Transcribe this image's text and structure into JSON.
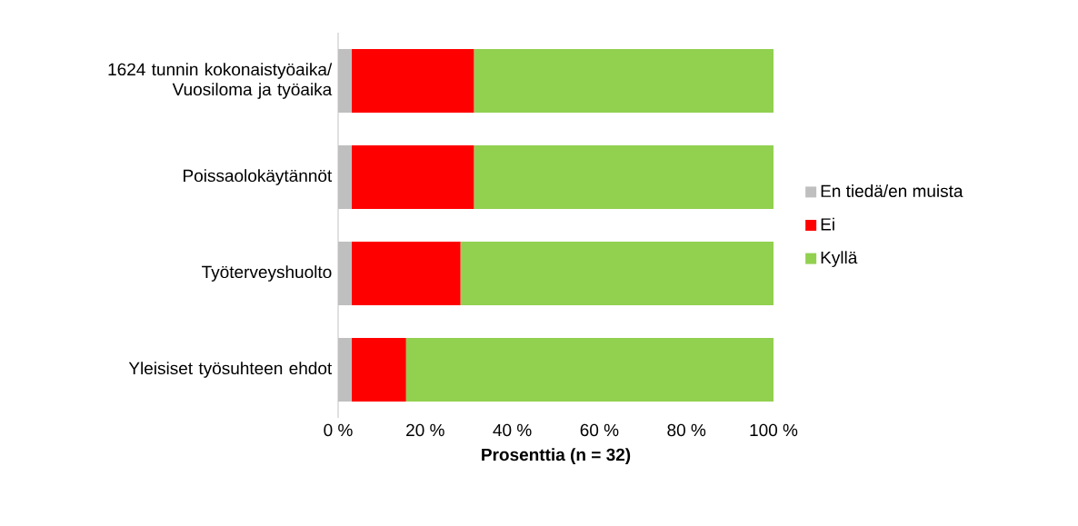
{
  "chart_data": {
    "type": "bar",
    "orientation": "horizontal",
    "stacked": true,
    "categories": [
      "1624 tunnin kokonaistyöaika/ Vuosiloma ja työaika",
      "Poissaolokäytännöt",
      "Työterveyshuolto",
      "Yleisiset työsuhteen ehdot"
    ],
    "series": [
      {
        "name": "En tiedä/en muista",
        "color": "#bfbfbf",
        "values": [
          3.1,
          3.1,
          3.1,
          3.1
        ]
      },
      {
        "name": "Ei",
        "color": "#ff0000",
        "values": [
          28.1,
          28.1,
          25.0,
          12.5
        ]
      },
      {
        "name": "Kyllä",
        "color": "#92d050",
        "values": [
          68.8,
          68.8,
          71.9,
          84.4
        ]
      }
    ],
    "xlabel": "Prosenttia (n = 32)",
    "xlim": [
      0,
      100
    ],
    "xticks": [
      {
        "value": 0,
        "label": "0 %"
      },
      {
        "value": 20,
        "label": "20 %"
      },
      {
        "value": 40,
        "label": "40 %"
      },
      {
        "value": 60,
        "label": "60 %"
      },
      {
        "value": 80,
        "label": "80 %"
      },
      {
        "value": 100,
        "label": "100 %"
      }
    ],
    "legend": "right"
  }
}
